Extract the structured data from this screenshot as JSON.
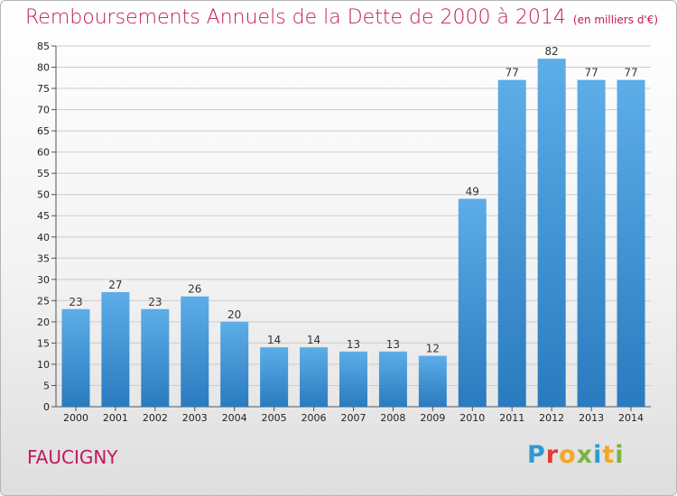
{
  "header": {
    "title": "Remboursements Annuels de la Dette de 2000 à 2014",
    "unit": "(en milliers d'€)"
  },
  "commune": "FAUCIGNY",
  "brand": {
    "name": "Proxiti",
    "letters": [
      {
        "ch": "P",
        "color": "#2e9ad0"
      },
      {
        "ch": "r",
        "color": "#e53935"
      },
      {
        "ch": "o",
        "color": "#f5a623"
      },
      {
        "ch": "x",
        "color": "#7cb342"
      },
      {
        "ch": "i",
        "color": "#2e9ad0"
      },
      {
        "ch": "t",
        "color": "#f5a623"
      },
      {
        "ch": "i",
        "color": "#7cb342"
      }
    ]
  },
  "chart_data": {
    "type": "bar",
    "title": "Remboursements Annuels de la Dette de 2000 à 2014",
    "subtitle": "(en milliers d'€)",
    "categories": [
      "2000",
      "2001",
      "2002",
      "2003",
      "2004",
      "2005",
      "2006",
      "2007",
      "2008",
      "2009",
      "2010",
      "2011",
      "2012",
      "2013",
      "2014"
    ],
    "values": [
      23,
      27,
      23,
      26,
      20,
      14,
      14,
      13,
      13,
      12,
      49,
      77,
      82,
      77,
      77
    ],
    "ylim": [
      0,
      85
    ],
    "yticks": [
      0,
      5,
      10,
      15,
      20,
      25,
      30,
      35,
      40,
      45,
      50,
      55,
      60,
      65,
      70,
      75,
      80,
      85
    ],
    "grid": true,
    "legend": "none",
    "bar_color_top": "#5dade8",
    "bar_color_bottom": "#2a7bbf",
    "grid_color": "#cccccc",
    "title_color": "#c2185b"
  }
}
